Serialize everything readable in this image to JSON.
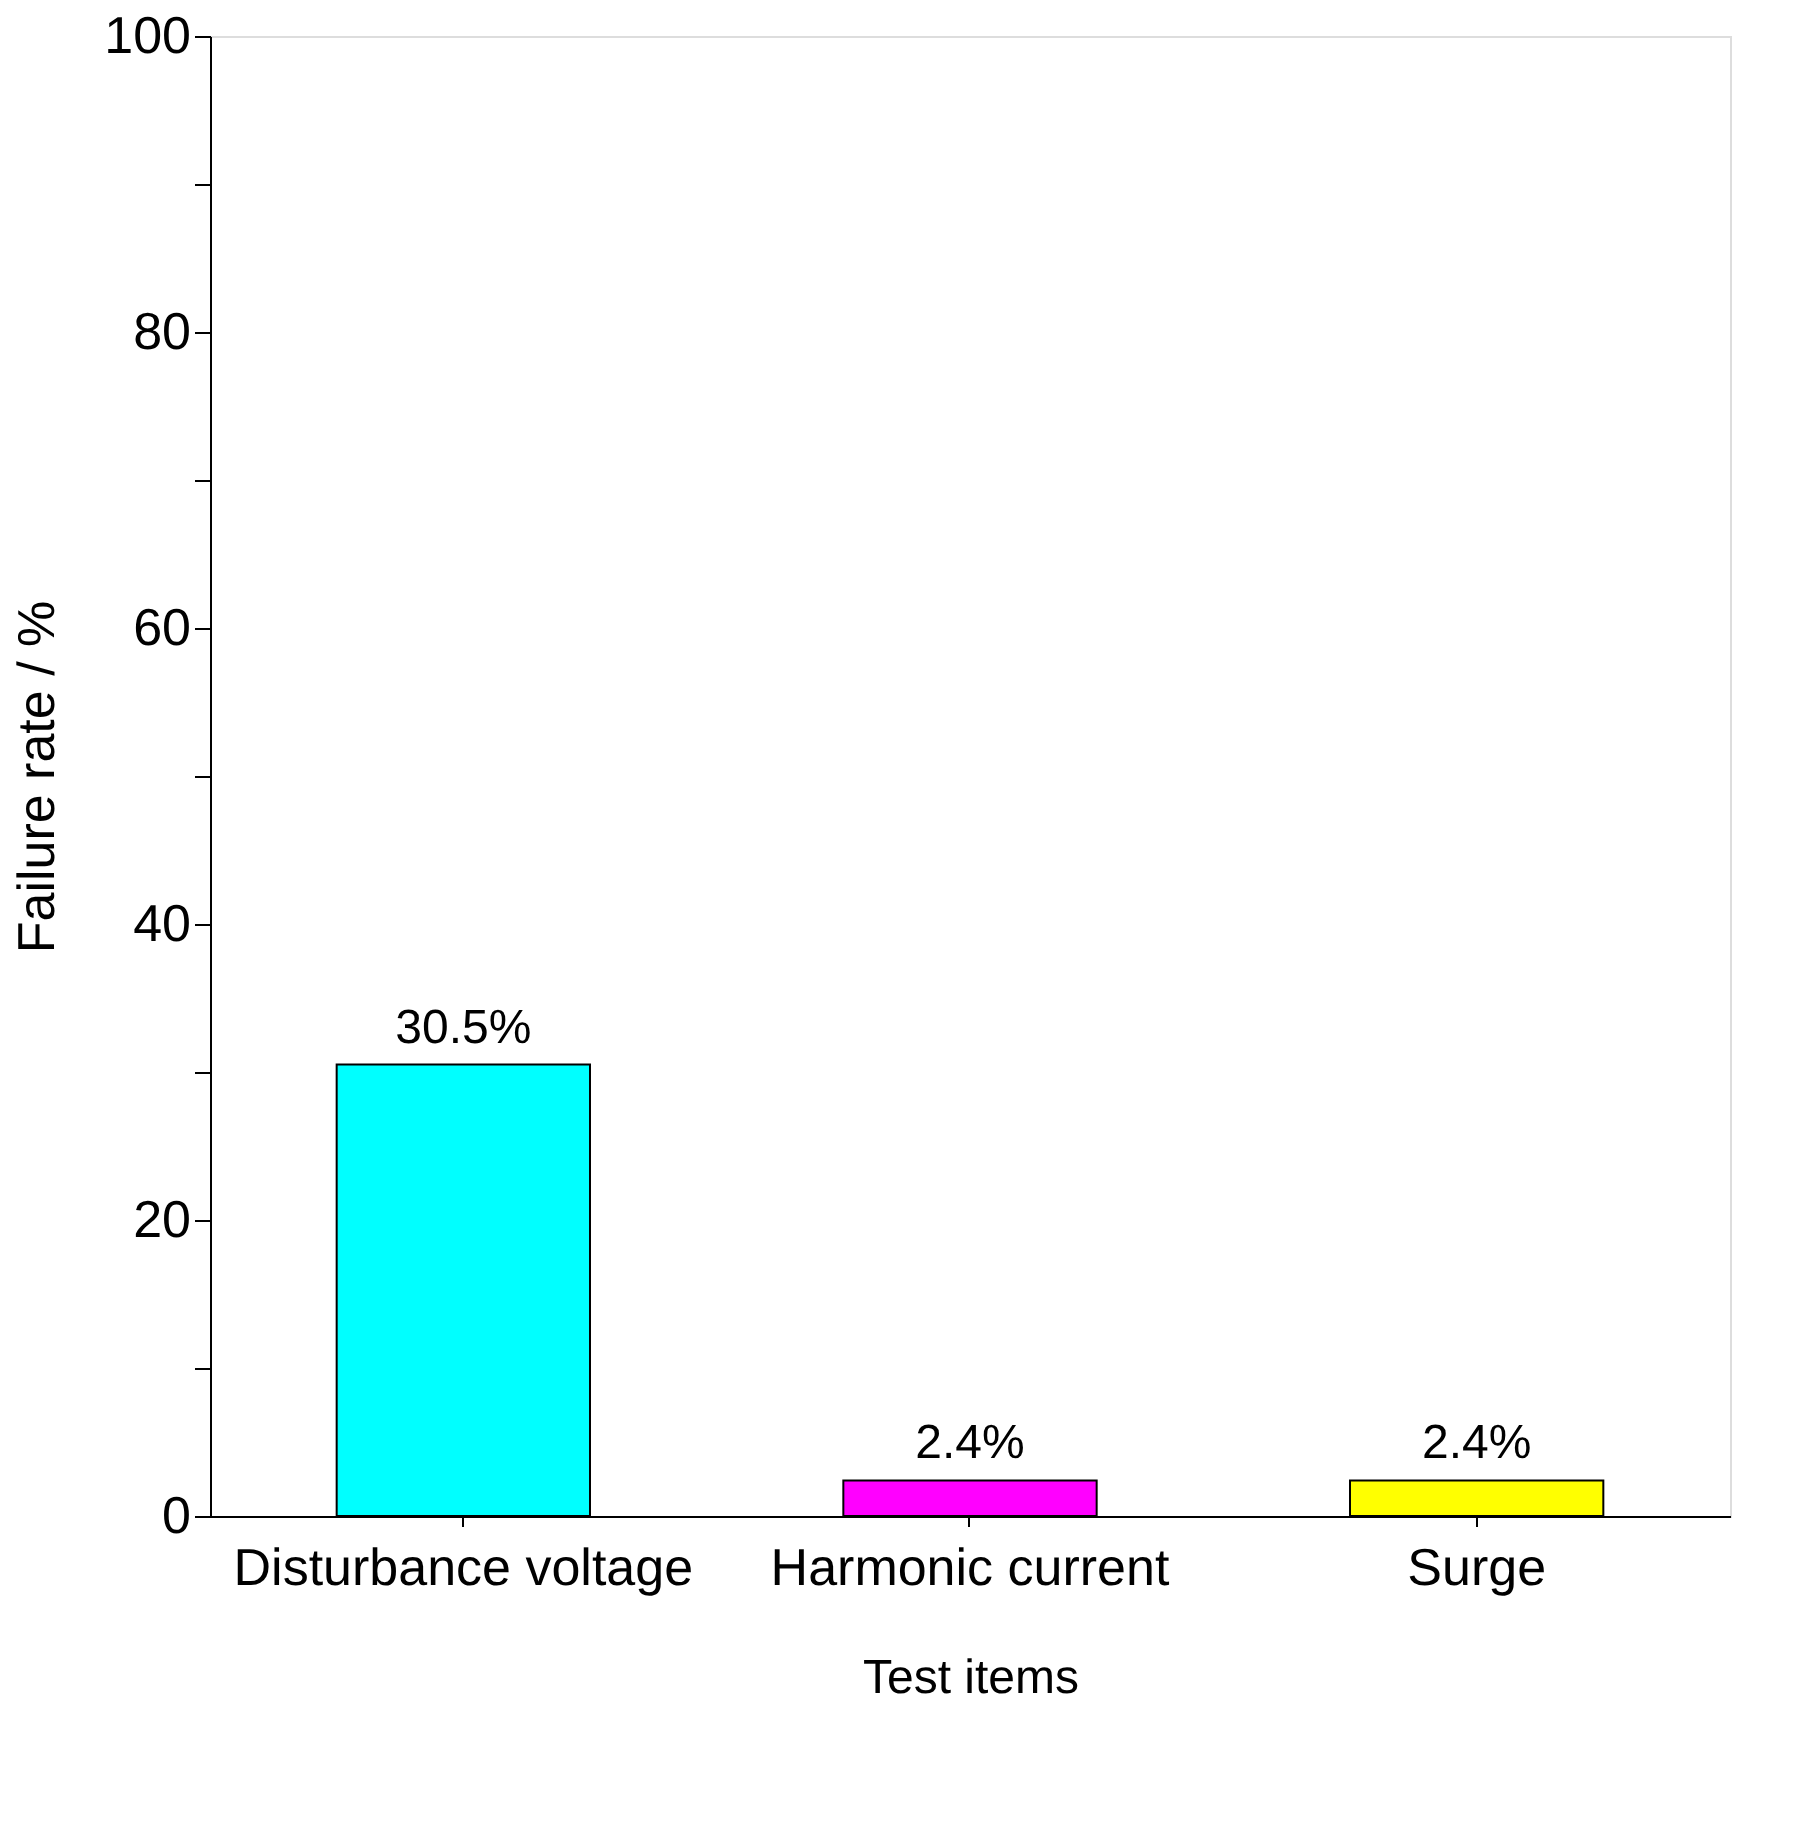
{
  "chart_data": {
    "type": "bar",
    "xlabel": "Test items",
    "ylabel": "Failure rate / %",
    "categories": [
      "Disturbance voltage",
      "Harmonic  current",
      "Surge"
    ],
    "values": [
      30.5,
      2.4,
      2.4
    ],
    "colors": [
      "#00ffff",
      "#ff00ff",
      "#ffff00"
    ],
    "value_labels": [
      "30.5%",
      "2.4%",
      "2.4%"
    ],
    "ylim": [
      0,
      100
    ],
    "yticks": [
      0,
      {
        "value": 10,
        "label": null
      },
      20,
      {
        "value": 30,
        "label": null
      },
      40,
      {
        "value": 50,
        "label": null
      },
      60,
      {
        "value": 70,
        "label": null
      },
      80,
      {
        "value": 90,
        "label": null
      },
      100
    ],
    "grid": false,
    "legend": false
  }
}
